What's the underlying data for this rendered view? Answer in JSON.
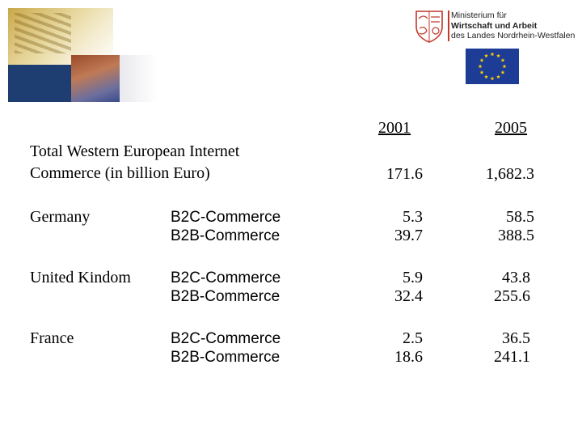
{
  "logo": {
    "line1": "Ministerium für",
    "line2": "Wirtschaft und Arbeit",
    "line3": "des Landes Nordrhein-Westfalen"
  },
  "colors": {
    "eu_blue": "#1d3c96",
    "eu_star": "#ffd200",
    "crest_red": "#c0392b"
  },
  "table": {
    "years": [
      "2001",
      "2005"
    ],
    "total": {
      "label_line1": "Total Western European Internet",
      "label_line2": "Commerce (in billion Euro)",
      "values": [
        "171.6",
        "1,682.3"
      ]
    },
    "rows": [
      {
        "country": "Germany",
        "types": [
          "B2C-Commerce",
          "B2B-Commerce"
        ],
        "y2001": [
          "5.3",
          "39.7"
        ],
        "y2005": [
          "58.5",
          "388.5"
        ]
      },
      {
        "country": "United Kindom",
        "types": [
          "B2C-Commerce",
          "B2B-Commerce"
        ],
        "y2001": [
          "5.9",
          "32.4"
        ],
        "y2005": [
          "43.8",
          "255.6"
        ]
      },
      {
        "country": "France",
        "types": [
          "B2C-Commerce",
          "B2B-Commerce"
        ],
        "y2001": [
          "2.5",
          "18.6"
        ],
        "y2005": [
          "36.5",
          "241.1"
        ]
      }
    ]
  }
}
